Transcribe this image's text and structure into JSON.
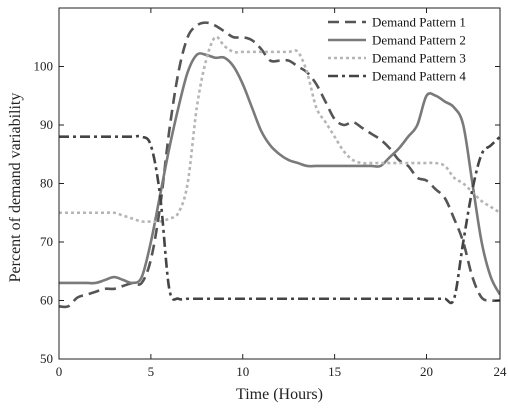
{
  "chart_data": {
    "type": "line",
    "title": "",
    "xlabel": "Time (Hours)",
    "ylabel": "Percent of demand variability",
    "xlim": [
      0,
      24
    ],
    "ylim": [
      50,
      110
    ],
    "xticks": [
      0,
      5,
      10,
      15,
      20,
      24
    ],
    "yticks": [
      50,
      60,
      70,
      80,
      90,
      100
    ],
    "grid": false,
    "legend_position": "top-right",
    "series": [
      {
        "name": "Demand Pattern 1",
        "style": "dashed",
        "color": "#555555",
        "x": [
          0,
          0.5,
          1,
          1.5,
          2,
          2.5,
          3,
          3.5,
          4,
          4.5,
          5,
          5.5,
          6,
          6.5,
          7,
          7.5,
          8,
          8.5,
          9,
          9.5,
          10,
          10.5,
          11,
          11.5,
          12,
          12.5,
          13,
          13.5,
          14,
          14.5,
          15,
          15.5,
          16,
          16.5,
          17,
          17.5,
          18,
          18.5,
          19,
          19.5,
          20,
          20.5,
          21,
          21.5,
          22,
          22.5,
          23,
          23.5,
          24
        ],
        "y": [
          59,
          59,
          60.5,
          61,
          61.5,
          62,
          62,
          62.5,
          63,
          63,
          67,
          76,
          89,
          99,
          105,
          107,
          107.5,
          107,
          106,
          105,
          105,
          104.5,
          103,
          101,
          101,
          101,
          100,
          99,
          97,
          94,
          91,
          90,
          90.5,
          89.5,
          88.5,
          87.5,
          86,
          84,
          83,
          81,
          80.5,
          79,
          77.5,
          74,
          70,
          64,
          60.5,
          60,
          60
        ]
      },
      {
        "name": "Demand Pattern 2",
        "style": "solid",
        "color": "#7a7a7a",
        "x": [
          0,
          0.5,
          1,
          1.5,
          2,
          2.5,
          3,
          3.5,
          4,
          4.5,
          5,
          5.5,
          6,
          6.5,
          7,
          7.5,
          8,
          8.5,
          9,
          9.5,
          10,
          10.5,
          11,
          11.5,
          12,
          12.5,
          13,
          13.5,
          14,
          14.5,
          15,
          15.5,
          16,
          16.5,
          17,
          17.5,
          18,
          18.5,
          19,
          19.5,
          20,
          20.5,
          21,
          21.5,
          22,
          22.5,
          23,
          23.5,
          24
        ],
        "y": [
          63,
          63,
          63,
          63,
          63,
          63.5,
          64,
          63.5,
          63,
          64,
          70,
          78,
          86,
          93,
          99,
          102,
          102,
          101.5,
          101.5,
          100,
          97,
          93,
          89,
          86.5,
          85,
          84,
          83.5,
          83,
          83,
          83,
          83,
          83,
          83,
          83,
          83,
          83,
          84.5,
          86,
          88,
          90,
          95,
          95,
          94,
          93,
          90,
          80,
          70,
          64,
          61
        ]
      },
      {
        "name": "Demand Pattern 3",
        "style": "dotted",
        "color": "#b5b5b5",
        "x": [
          0,
          0.5,
          1,
          1.5,
          2,
          2.5,
          3,
          3.5,
          4,
          4.5,
          5,
          5.5,
          6,
          6.5,
          7,
          7.5,
          8,
          8.5,
          9,
          9.5,
          10,
          10.5,
          11,
          11.5,
          12,
          12.5,
          13,
          13.5,
          14,
          14.5,
          15,
          15.5,
          16,
          16.5,
          17,
          17.5,
          18,
          18.5,
          19,
          19.5,
          20,
          20.5,
          21,
          21.5,
          22,
          22.5,
          23,
          23.5,
          24
        ],
        "y": [
          75,
          75,
          75,
          75,
          75,
          75,
          75,
          74.5,
          74,
          73.5,
          73.5,
          73.5,
          74,
          75,
          80,
          93,
          101,
          105,
          103.5,
          102.5,
          102.5,
          102.5,
          102.5,
          102.5,
          102.5,
          102.5,
          102.5,
          99,
          93,
          90.5,
          88,
          85.5,
          84,
          83.5,
          83.5,
          83.5,
          83.5,
          83.5,
          83.5,
          83.5,
          83.5,
          83.5,
          83,
          81,
          80,
          78.5,
          77,
          76,
          75
        ]
      },
      {
        "name": "Demand Pattern 4",
        "style": "dashdot",
        "color": "#444444",
        "x": [
          0,
          0.5,
          1,
          1.5,
          2,
          2.5,
          3,
          3.5,
          4,
          4.5,
          5,
          5.5,
          6,
          6.5,
          7,
          7.5,
          8,
          8.5,
          9,
          9.5,
          10,
          10.5,
          11,
          11.5,
          12,
          12.5,
          13,
          13.5,
          14,
          14.5,
          15,
          15.5,
          16,
          16.5,
          17,
          17.5,
          18,
          18.5,
          19,
          19.5,
          20,
          20.5,
          21,
          21.5,
          22,
          22.5,
          23,
          23.5,
          24
        ],
        "y": [
          88,
          88,
          88,
          88,
          88,
          88,
          88,
          88,
          88,
          88,
          86.5,
          78,
          62,
          60.3,
          60.3,
          60.3,
          60.3,
          60.3,
          60.3,
          60.3,
          60.3,
          60.3,
          60.3,
          60.3,
          60.3,
          60.3,
          60.3,
          60.3,
          60.3,
          60.3,
          60.3,
          60.3,
          60.3,
          60.3,
          60.3,
          60.3,
          60.3,
          60.3,
          60.3,
          60.3,
          60.3,
          60.3,
          60.3,
          60.3,
          70,
          79,
          85,
          86.5,
          88
        ]
      }
    ]
  }
}
